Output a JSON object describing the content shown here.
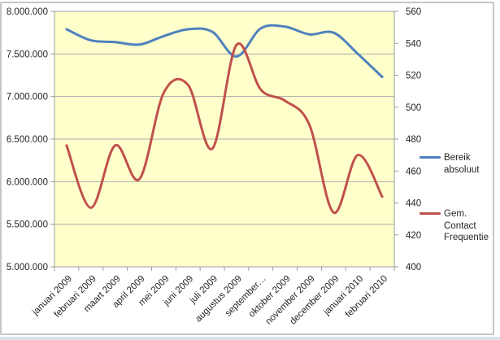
{
  "window": {
    "background": "#FFFFFF",
    "border_color": "#C6C6C6",
    "bottom_strip_color": "#D7E1EE"
  },
  "chart_data": {
    "type": "line",
    "smooth": true,
    "plot_bg": "#FFFFCC",
    "gridline_color": "#ABABAB",
    "axis_color": "#9C9C9C",
    "text_color": "#262626",
    "categories": [
      "januari 2009",
      "februari 2009",
      "maart 2009",
      "april 2009",
      "mei 2009",
      "juni 2009",
      "juli 2009",
      "augustus 2009",
      "september…",
      "oktober 2009",
      "november 2009",
      "december 2009",
      "januari 2010",
      "februari 2010"
    ],
    "series": [
      {
        "name": "Bereik absoluut",
        "axis": "left",
        "color": "#4F81BD",
        "values": [
          7790000,
          7660000,
          7640000,
          7610000,
          7710000,
          7790000,
          7760000,
          7470000,
          7800000,
          7820000,
          7730000,
          7750000,
          7500000,
          7230000
        ]
      },
      {
        "name": "Gem. Contact Frequentie",
        "axis": "right",
        "color": "#C0504D",
        "values": [
          476,
          437,
          476,
          455,
          509,
          514,
          474,
          539,
          511,
          504,
          489,
          434,
          470,
          444
        ]
      }
    ],
    "left_axis": {
      "min": 5000000,
      "max": 8000000,
      "step": 500000,
      "tick_labels": [
        "8.000.000",
        "7.500.000",
        "7.000.000",
        "6.500.000",
        "6.000.000",
        "5.500.000",
        "5.000.000"
      ]
    },
    "right_axis": {
      "min": 400,
      "max": 560,
      "step": 20,
      "tick_labels": [
        "560",
        "540",
        "520",
        "500",
        "480",
        "460",
        "440",
        "420",
        "400"
      ]
    },
    "legend": {
      "position": "right",
      "items": [
        {
          "label": "Bereik absoluut",
          "color": "#4F81BD"
        },
        {
          "label": "Gem. Contact Frequentie",
          "color": "#C0504D"
        }
      ]
    }
  }
}
